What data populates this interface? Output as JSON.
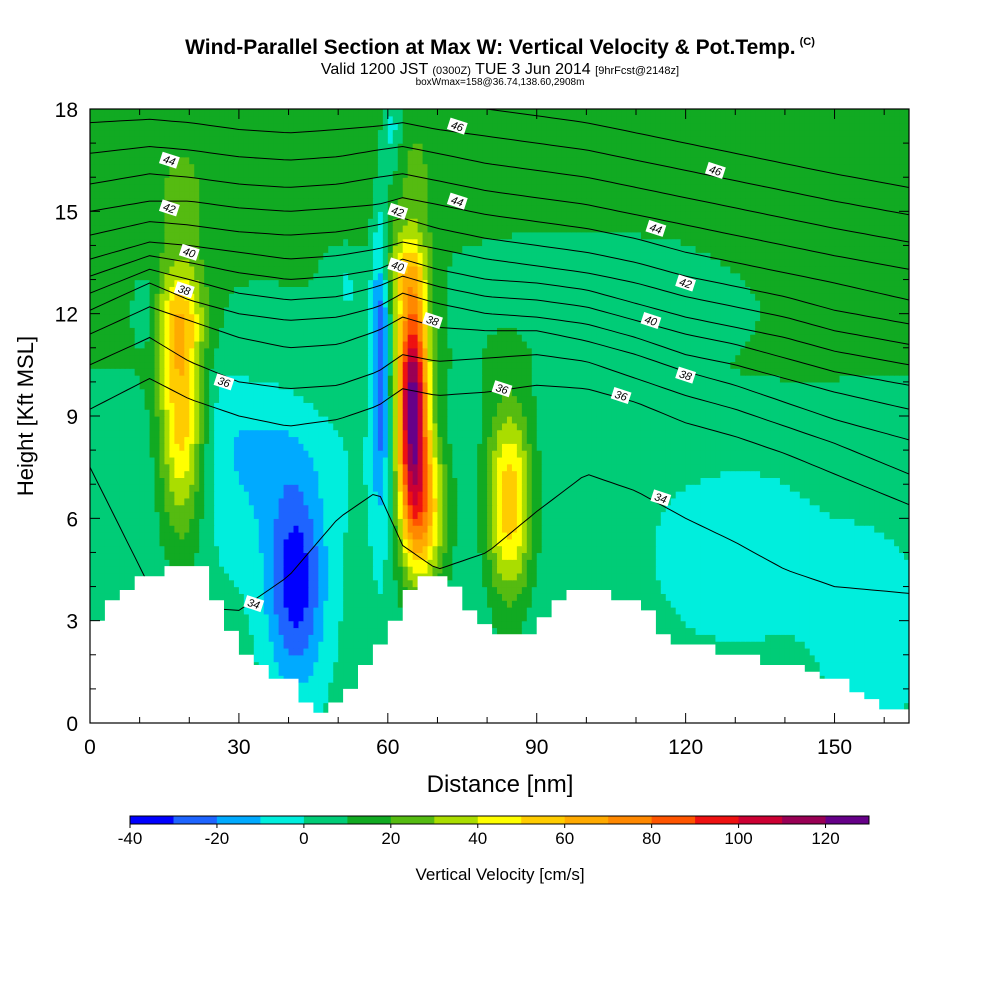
{
  "header": {
    "title": "Wind-Parallel Section at Max W: Vertical Velocity & Pot.Temp.",
    "copyright_mark": "(C)",
    "subtitle_valid": "Valid 1200 JST",
    "subtitle_utc": "(0300Z)",
    "subtitle_date": "TUE 3 Jun 2014",
    "subtitle_fcst": "[9hrFcst@2148z]",
    "subtitle_box": "boxWmax=158@36.74,138.60,2908m"
  },
  "colors": {
    "palette": [
      "#0000ff",
      "#1e64ff",
      "#00aaff",
      "#00eedd",
      "#00cc77",
      "#11aa22",
      "#55bb11",
      "#aadd00",
      "#ffff00",
      "#ffcc00",
      "#ffaa00",
      "#ff8800",
      "#ff5500",
      "#ee1111",
      "#cc0033",
      "#990055",
      "#660088"
    ],
    "terrain": "#ffffff",
    "contour": "#000000"
  },
  "chart_data": {
    "type": "heatmap",
    "xlabel": "Distance [nm]",
    "ylabel": "Height [Kft MSL]",
    "xlim": [
      0,
      165
    ],
    "ylim": [
      0,
      18
    ],
    "x_ticks": [
      0,
      30,
      60,
      90,
      120,
      150
    ],
    "y_ticks": [
      0,
      3,
      6,
      9,
      12,
      15,
      18
    ],
    "colorbar": {
      "label": "Vertical Velocity [cm/s]",
      "tick_labels": [
        "-40",
        "-20",
        "0",
        "20",
        "40",
        "60",
        "80",
        "100",
        "120"
      ],
      "levels": [
        -40,
        -30,
        -20,
        -10,
        0,
        10,
        20,
        30,
        40,
        50,
        60,
        70,
        80,
        90,
        100,
        110,
        120,
        130
      ]
    },
    "background_field": [
      {
        "x": [
          0,
          14,
          22,
          35,
          60,
          88,
          120,
          165
        ],
        "base_y": [
          9.5,
          9.5,
          11.2,
          9.0,
          9.3,
          10.0,
          8.5,
          9.4
        ],
        "value": 8
      },
      {
        "x": [
          0,
          30,
          60,
          90,
          120,
          165
        ],
        "base_y": [
          14.5,
          14.5,
          14.5,
          14.8,
          14.5,
          12.5
        ],
        "value": 8
      }
    ],
    "w_features": [
      {
        "x": 18.5,
        "y": 9.3,
        "sx": 3.2,
        "sy": 2.6,
        "peak": 58
      },
      {
        "x": 17.0,
        "y": 12.0,
        "sx": 4.0,
        "sy": 0.9,
        "peak": 18
      },
      {
        "x": 65.0,
        "y": 9.2,
        "sx": 2.2,
        "sy": 2.6,
        "peak": 118
      },
      {
        "x": 68.0,
        "y": 6.2,
        "sx": 3.0,
        "sy": 1.6,
        "peak": 45
      },
      {
        "x": 63.0,
        "y": 13.3,
        "sx": 3.6,
        "sy": 0.8,
        "peak": 22
      },
      {
        "x": 84.5,
        "y": 6.5,
        "sx": 3.2,
        "sy": 2.0,
        "peak": 55
      },
      {
        "x": 58.5,
        "y": 11.0,
        "sx": 1.4,
        "sy": 3.2,
        "peak": -38
      },
      {
        "x": 61.0,
        "y": 17.5,
        "sx": 1.4,
        "sy": 1.0,
        "peak": -20
      },
      {
        "x": 41.5,
        "y": 4.0,
        "sx": 4.0,
        "sy": 2.0,
        "peak": -38
      },
      {
        "x": 34.0,
        "y": 8.0,
        "sx": 10.0,
        "sy": 2.2,
        "peak": -15
      },
      {
        "x": 12.0,
        "y": 12.0,
        "sx": 2.0,
        "sy": 0.8,
        "peak": -15
      },
      {
        "x": 52.0,
        "y": 12.8,
        "sx": 3.0,
        "sy": 0.8,
        "peak": -12
      },
      {
        "x": 100.0,
        "y": 13.0,
        "sx": 20.0,
        "sy": 1.6,
        "peak": -6
      },
      {
        "x": 130.0,
        "y": 5.0,
        "sx": 14.0,
        "sy": 2.2,
        "peak": -6
      },
      {
        "x": 158.0,
        "y": 2.6,
        "sx": 8.0,
        "sy": 2.2,
        "peak": -6
      },
      {
        "x": 143.0,
        "y": 16.6,
        "sx": 14.0,
        "sy": 1.3,
        "peak": -6
      }
    ],
    "terrain": {
      "x": [
        0,
        3,
        6,
        9,
        12,
        15,
        21,
        24,
        27,
        30,
        33,
        36,
        39,
        42,
        45,
        48,
        51,
        54,
        57,
        60,
        63,
        66,
        69,
        72,
        75,
        78,
        81,
        84,
        87,
        90,
        93,
        96,
        99,
        102,
        105,
        108,
        111,
        114,
        117,
        120,
        123,
        126,
        129,
        132,
        135,
        138,
        141,
        144,
        147,
        150,
        153,
        156,
        159,
        162,
        165
      ],
      "height": [
        3.0,
        3.6,
        3.9,
        4.3,
        4.3,
        4.6,
        4.6,
        3.6,
        2.7,
        2.0,
        1.7,
        1.3,
        1.3,
        0.6,
        0.3,
        0.6,
        1.0,
        1.7,
        2.3,
        3.0,
        3.9,
        4.3,
        4.3,
        4.0,
        3.3,
        2.9,
        2.6,
        2.6,
        2.6,
        3.1,
        3.6,
        3.9,
        3.9,
        3.9,
        3.6,
        3.6,
        3.3,
        2.6,
        2.3,
        2.3,
        2.3,
        2.0,
        2.0,
        2.0,
        1.7,
        1.7,
        1.7,
        1.5,
        1.3,
        1.3,
        0.9,
        0.7,
        0.4,
        0.4,
        0.4
      ]
    },
    "theta_contours": {
      "levels": [
        34,
        35,
        36,
        37,
        38,
        39,
        40,
        41,
        42,
        43,
        44,
        45,
        46,
        47
      ],
      "x": [
        0,
        12,
        20,
        30,
        40,
        50,
        58,
        63,
        70,
        80,
        90,
        100,
        110,
        120,
        130,
        140,
        150,
        165
      ],
      "heights": [
        [
          7.5,
          4.0,
          3.4,
          3.3,
          4.3,
          6.0,
          6.8,
          5.2,
          4.5,
          5.0,
          6.2,
          7.3,
          6.8,
          6.0,
          5.3,
          4.5,
          4.0,
          3.8
        ],
        [
          9.2,
          10.1,
          9.5,
          9.0,
          8.7,
          8.9,
          9.3,
          9.8,
          9.6,
          9.7,
          9.9,
          9.8,
          9.4,
          8.8,
          8.4,
          7.9,
          7.3,
          6.4
        ],
        [
          10.5,
          11.3,
          10.6,
          10.0,
          9.8,
          9.9,
          10.3,
          10.8,
          10.6,
          10.7,
          10.8,
          10.6,
          10.1,
          9.6,
          9.2,
          8.7,
          8.2,
          7.3
        ],
        [
          11.4,
          12.2,
          11.8,
          11.3,
          11.0,
          11.1,
          11.5,
          11.9,
          11.6,
          11.5,
          11.5,
          11.2,
          10.8,
          10.3,
          9.9,
          9.4,
          8.9,
          8.3
        ],
        [
          12.1,
          12.9,
          12.4,
          12.0,
          11.8,
          11.9,
          12.2,
          12.6,
          12.3,
          12.0,
          11.9,
          11.7,
          11.3,
          10.8,
          10.5,
          10.1,
          9.7,
          9.2
        ],
        [
          12.6,
          13.3,
          13.0,
          12.6,
          12.4,
          12.5,
          12.8,
          13.1,
          12.8,
          12.5,
          12.4,
          12.2,
          11.8,
          11.4,
          11.1,
          10.7,
          10.3,
          9.9
        ],
        [
          13.1,
          13.7,
          13.5,
          13.2,
          13.0,
          13.1,
          13.3,
          13.6,
          13.3,
          13.0,
          12.9,
          12.7,
          12.3,
          11.9,
          11.6,
          11.3,
          10.9,
          10.5
        ],
        [
          13.6,
          14.1,
          14.0,
          13.8,
          13.6,
          13.7,
          13.9,
          14.1,
          13.9,
          13.6,
          13.4,
          13.2,
          12.9,
          12.5,
          12.2,
          11.9,
          11.5,
          11.1
        ],
        [
          14.3,
          14.7,
          14.6,
          14.4,
          14.3,
          14.4,
          14.6,
          14.8,
          14.5,
          14.2,
          14.0,
          13.8,
          13.5,
          13.1,
          12.8,
          12.5,
          12.1,
          11.7
        ],
        [
          15.0,
          15.3,
          15.3,
          15.1,
          15.0,
          15.1,
          15.2,
          15.4,
          15.2,
          14.9,
          14.7,
          14.5,
          14.2,
          13.8,
          13.5,
          13.2,
          12.9,
          12.4
        ],
        [
          15.8,
          16.1,
          16.0,
          15.8,
          15.7,
          15.8,
          16.0,
          16.1,
          15.9,
          15.6,
          15.4,
          15.2,
          14.9,
          14.6,
          14.3,
          14.0,
          13.7,
          13.3
        ],
        [
          16.7,
          16.9,
          16.8,
          16.6,
          16.5,
          16.6,
          16.8,
          16.9,
          16.7,
          16.4,
          16.2,
          16.0,
          15.7,
          15.4,
          15.1,
          14.8,
          14.5,
          14.1
        ],
        [
          17.6,
          17.7,
          17.6,
          17.4,
          17.3,
          17.4,
          17.5,
          17.6,
          17.4,
          17.2,
          17.0,
          16.8,
          16.5,
          16.2,
          15.9,
          15.6,
          15.3,
          14.9
        ],
        [
          18.4,
          18.5,
          18.4,
          18.2,
          18.1,
          18.2,
          18.3,
          18.4,
          18.2,
          18.0,
          17.8,
          17.6,
          17.3,
          17.0,
          16.7,
          16.4,
          16.1,
          15.7
        ]
      ],
      "labels": [
        {
          "text": "34",
          "x": 33,
          "y": 3.5
        },
        {
          "text": "34",
          "x": 115,
          "y": 6.6
        },
        {
          "text": "36",
          "x": 27,
          "y": 10.0
        },
        {
          "text": "36",
          "x": 83,
          "y": 9.8
        },
        {
          "text": "36",
          "x": 107,
          "y": 9.6
        },
        {
          "text": "38",
          "x": 19,
          "y": 12.7
        },
        {
          "text": "38",
          "x": 69,
          "y": 11.8
        },
        {
          "text": "38",
          "x": 120,
          "y": 10.2
        },
        {
          "text": "40",
          "x": 20,
          "y": 13.8
        },
        {
          "text": "40",
          "x": 62,
          "y": 13.4
        },
        {
          "text": "40",
          "x": 113,
          "y": 11.8
        },
        {
          "text": "42",
          "x": 16,
          "y": 15.1
        },
        {
          "text": "42",
          "x": 62,
          "y": 15.0
        },
        {
          "text": "42",
          "x": 120,
          "y": 12.9
        },
        {
          "text": "44",
          "x": 16,
          "y": 16.5
        },
        {
          "text": "44",
          "x": 74,
          "y": 15.3
        },
        {
          "text": "44",
          "x": 114,
          "y": 14.5
        },
        {
          "text": "46",
          "x": 74,
          "y": 17.5
        },
        {
          "text": "46",
          "x": 126,
          "y": 16.2
        }
      ]
    }
  }
}
